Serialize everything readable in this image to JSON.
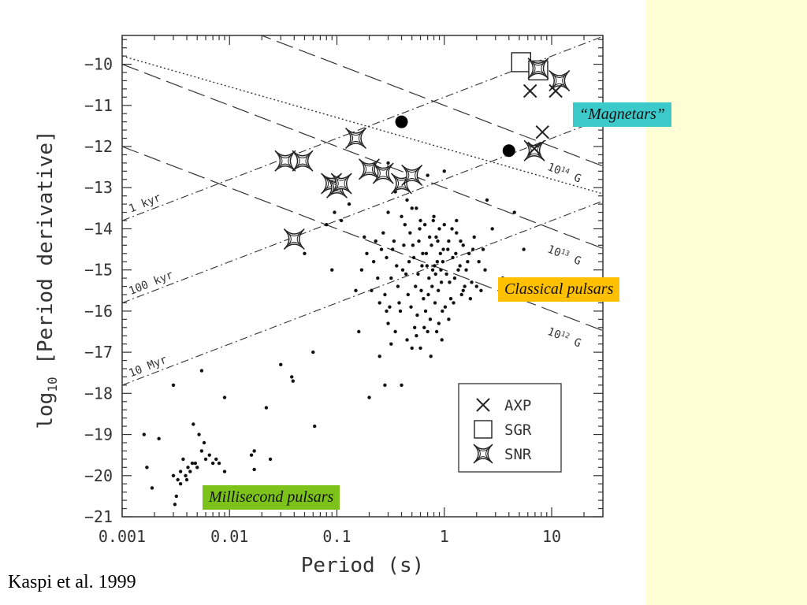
{
  "colors": {
    "side_panel": "#ffffd6",
    "magnetars_box": "#3cc9c9",
    "classical_box": "#ffc000",
    "msp_box": "#7cc21b"
  },
  "annotations": {
    "magnetars": "“Magnetars”",
    "classical": "Classical pulsars",
    "msp": "Millisecond pulsars"
  },
  "citation": "Kaspi et al. 1999",
  "chart_data": {
    "type": "scatter",
    "title": "",
    "xlabel": "Period (s)",
    "ylabel_prefix": "log",
    "ylabel_sub": "10",
    "ylabel_suffix": " [Period derivative]",
    "xscale": "log",
    "xlim": [
      0.001,
      30
    ],
    "ylim": [
      -21,
      -9.3
    ],
    "x_ticks": [
      {
        "value": 0.001,
        "label": "0.001"
      },
      {
        "value": 0.01,
        "label": "0.01"
      },
      {
        "value": 0.1,
        "label": "0.1"
      },
      {
        "value": 1,
        "label": "1"
      },
      {
        "value": 10,
        "label": "10"
      }
    ],
    "y_ticks": [
      {
        "value": -10,
        "label": "−10"
      },
      {
        "value": -11,
        "label": "−11"
      },
      {
        "value": -12,
        "label": "−12"
      },
      {
        "value": -13,
        "label": "−13"
      },
      {
        "value": -14,
        "label": "−14"
      },
      {
        "value": -15,
        "label": "−15"
      },
      {
        "value": -16,
        "label": "−16"
      },
      {
        "value": -17,
        "label": "−17"
      },
      {
        "value": -18,
        "label": "−18"
      },
      {
        "value": -19,
        "label": "−19"
      },
      {
        "value": -20,
        "label": "−20"
      },
      {
        "value": -21,
        "label": "−21"
      }
    ],
    "magnetic_field_lines": [
      {
        "name": "B-1e14",
        "label": "10",
        "exp": "14",
        "unit": "G",
        "log_b": 14
      },
      {
        "name": "B-1e13",
        "label": "10",
        "exp": "13",
        "unit": "G",
        "log_b": 13
      },
      {
        "name": "B-1e12",
        "label": "10",
        "exp": "12",
        "unit": "G",
        "log_b": 12
      }
    ],
    "age_lines": [
      {
        "name": "age-1kyr",
        "label": "1 kyr",
        "log_tau_yr": 3
      },
      {
        "name": "age-100kyr",
        "label": "100 kyr",
        "log_tau_yr": 5
      },
      {
        "name": "age-10Myr",
        "label": "10 Myr",
        "log_tau_yr": 7
      }
    ],
    "death_line": {
      "name": "dotted-line",
      "points": [
        [
          0.001,
          -9.8
        ],
        [
          30,
          -13.15
        ]
      ]
    },
    "special_points": [
      {
        "name": "filled-circle",
        "x": 0.4,
        "y": -11.4
      },
      {
        "name": "filled-circle",
        "x": 4.0,
        "y": -12.1
      }
    ],
    "series": [
      {
        "name": "AXP",
        "marker": "cross",
        "points": [
          [
            6.3,
            -10.65
          ],
          [
            10.9,
            -10.65
          ],
          [
            8.2,
            -11.65
          ],
          [
            6.9,
            -12.05
          ]
        ]
      },
      {
        "name": "SGR",
        "marker": "square",
        "points": [
          [
            5.2,
            -9.95
          ],
          [
            7.5,
            -10.15
          ]
        ]
      },
      {
        "name": "SNR",
        "marker": "star",
        "points": [
          [
            0.033,
            -12.35
          ],
          [
            0.048,
            -12.35
          ],
          [
            0.089,
            -12.9
          ],
          [
            0.1,
            -13.0
          ],
          [
            0.11,
            -12.9
          ],
          [
            0.15,
            -11.8
          ],
          [
            0.2,
            -12.55
          ],
          [
            0.27,
            -12.65
          ],
          [
            0.4,
            -12.9
          ],
          [
            0.5,
            -12.7
          ],
          [
            0.04,
            -14.25
          ],
          [
            7.5,
            -10.1
          ],
          [
            11.8,
            -10.4
          ],
          [
            6.9,
            -12.1
          ]
        ]
      }
    ],
    "legend": {
      "position": "lower-right",
      "entries": [
        {
          "marker": "cross",
          "label": "AXP"
        },
        {
          "marker": "square",
          "label": "SGR"
        },
        {
          "marker": "star",
          "label": "SNR"
        }
      ]
    },
    "scatter_points": [
      [
        0.0016,
        -19.0
      ],
      [
        0.0017,
        -19.8
      ],
      [
        0.0019,
        -20.3
      ],
      [
        0.0022,
        -19.1
      ],
      [
        0.003,
        -17.8
      ],
      [
        0.003,
        -20.0
      ],
      [
        0.0031,
        -20.7
      ],
      [
        0.0032,
        -20.5
      ],
      [
        0.0033,
        -20.1
      ],
      [
        0.0035,
        -20.2
      ],
      [
        0.0035,
        -19.9
      ],
      [
        0.0037,
        -19.6
      ],
      [
        0.0039,
        -20.0
      ],
      [
        0.004,
        -20.1
      ],
      [
        0.0041,
        -19.8
      ],
      [
        0.0043,
        -19.9
      ],
      [
        0.0045,
        -19.7
      ],
      [
        0.0046,
        -18.75
      ],
      [
        0.0048,
        -19.7
      ],
      [
        0.005,
        -19.8
      ],
      [
        0.0052,
        -19.0
      ],
      [
        0.0055,
        -17.45
      ],
      [
        0.0055,
        -19.4
      ],
      [
        0.0058,
        -19.2
      ],
      [
        0.006,
        -19.6
      ],
      [
        0.0065,
        -19.5
      ],
      [
        0.007,
        -19.7
      ],
      [
        0.0075,
        -19.6
      ],
      [
        0.008,
        -19.7
      ],
      [
        0.009,
        -18.1
      ],
      [
        0.009,
        -19.9
      ],
      [
        0.016,
        -19.5
      ],
      [
        0.017,
        -19.4
      ],
      [
        0.017,
        -19.85
      ],
      [
        0.022,
        -18.35
      ],
      [
        0.024,
        -19.6
      ],
      [
        0.03,
        -17.3
      ],
      [
        0.038,
        -17.6
      ],
      [
        0.039,
        -17.7
      ],
      [
        0.042,
        -14.25
      ],
      [
        0.05,
        -14.6
      ],
      [
        0.06,
        -17.0
      ],
      [
        0.062,
        -18.8
      ],
      [
        0.08,
        -13.9
      ],
      [
        0.09,
        -15.0
      ],
      [
        0.095,
        -13.6
      ],
      [
        0.11,
        -13.8
      ],
      [
        0.13,
        -13.4
      ],
      [
        0.15,
        -15.5
      ],
      [
        0.16,
        -16.5
      ],
      [
        0.18,
        -14.2
      ],
      [
        0.2,
        -18.1
      ],
      [
        0.25,
        -17.1
      ],
      [
        0.28,
        -17.8
      ],
      [
        0.4,
        -17.8
      ],
      [
        0.3,
        -12.4
      ],
      [
        0.7,
        -12.7
      ],
      [
        1.0,
        -12.6
      ],
      [
        2.5,
        -13.3
      ],
      [
        4.5,
        -13.6
      ],
      [
        5.5,
        -14.5
      ],
      [
        3.5,
        -15.2
      ],
      [
        2.8,
        -14.0
      ],
      [
        0.35,
        -13.1
      ],
      [
        0.45,
        -13.3
      ],
      [
        0.55,
        -13.5
      ],
      [
        0.25,
        -15.8
      ],
      [
        0.3,
        -16.3
      ],
      [
        0.32,
        -16.8
      ],
      [
        0.5,
        -16.9
      ],
      [
        0.6,
        -16.9
      ],
      [
        0.7,
        -16.5
      ],
      [
        1.5,
        -15.5
      ],
      [
        2.0,
        -15.4
      ],
      [
        0.22,
        -14.8
      ],
      [
        0.24,
        -15.2
      ],
      [
        0.26,
        -14.5
      ],
      [
        0.28,
        -15.6
      ],
      [
        0.32,
        -15.2
      ],
      [
        0.34,
        -14.3
      ],
      [
        0.36,
        -14.9
      ],
      [
        0.38,
        -15.8
      ],
      [
        0.42,
        -14.4
      ],
      [
        0.44,
        -15.1
      ],
      [
        0.46,
        -15.6
      ],
      [
        0.48,
        -14.1
      ],
      [
        0.52,
        -14.7
      ],
      [
        0.54,
        -15.4
      ],
      [
        0.56,
        -16.1
      ],
      [
        0.58,
        -14.3
      ],
      [
        0.62,
        -14.9
      ],
      [
        0.64,
        -15.7
      ],
      [
        0.66,
        -13.9
      ],
      [
        0.68,
        -14.6
      ],
      [
        0.72,
        -15.2
      ],
      [
        0.74,
        -16.2
      ],
      [
        0.76,
        -14.4
      ],
      [
        0.78,
        -15.0
      ],
      [
        0.82,
        -15.8
      ],
      [
        0.84,
        -14.2
      ],
      [
        0.86,
        -14.8
      ],
      [
        0.88,
        -15.5
      ],
      [
        0.9,
        -14.0
      ],
      [
        0.92,
        -14.6
      ],
      [
        0.94,
        -15.3
      ],
      [
        0.96,
        -16.0
      ],
      [
        0.98,
        -14.5
      ],
      [
        1.05,
        -15.1
      ],
      [
        1.1,
        -14.3
      ],
      [
        1.15,
        -15.7
      ],
      [
        1.2,
        -14.7
      ],
      [
        1.25,
        -15.2
      ],
      [
        1.3,
        -14.1
      ],
      [
        1.4,
        -14.9
      ],
      [
        1.45,
        -15.6
      ],
      [
        1.5,
        -14.4
      ],
      [
        1.6,
        -15.0
      ],
      [
        1.7,
        -14.6
      ],
      [
        1.8,
        -15.3
      ],
      [
        1.9,
        -14.2
      ],
      [
        2.1,
        -14.8
      ],
      [
        2.2,
        -15.5
      ],
      [
        2.3,
        -14.5
      ],
      [
        2.4,
        -15.0
      ],
      [
        0.27,
        -14.1
      ],
      [
        0.29,
        -14.7
      ],
      [
        0.31,
        -15.9
      ],
      [
        0.33,
        -14.5
      ],
      [
        0.37,
        -15.4
      ],
      [
        0.39,
        -16.0
      ],
      [
        0.41,
        -15.0
      ],
      [
        0.43,
        -13.9
      ],
      [
        0.47,
        -14.8
      ],
      [
        0.49,
        -15.9
      ],
      [
        0.51,
        -14.4
      ],
      [
        0.53,
        -16.4
      ],
      [
        0.57,
        -15.1
      ],
      [
        0.59,
        -14.0
      ],
      [
        0.61,
        -15.5
      ],
      [
        0.63,
        -14.6
      ],
      [
        0.67,
        -16.0
      ],
      [
        0.69,
        -14.9
      ],
      [
        0.71,
        -15.6
      ],
      [
        0.73,
        -14.2
      ],
      [
        0.77,
        -15.4
      ],
      [
        0.79,
        -13.8
      ],
      [
        0.81,
        -14.9
      ],
      [
        0.83,
        -15.1
      ],
      [
        0.87,
        -14.3
      ],
      [
        0.89,
        -16.3
      ],
      [
        0.93,
        -15.0
      ],
      [
        0.97,
        -14.8
      ],
      [
        1.02,
        -15.9
      ],
      [
        1.08,
        -14.5
      ],
      [
        1.12,
        -15.3
      ],
      [
        1.18,
        -14.0
      ],
      [
        1.22,
        -15.8
      ],
      [
        1.28,
        -14.6
      ],
      [
        1.35,
        -15.0
      ],
      [
        1.42,
        -14.3
      ],
      [
        1.55,
        -15.4
      ],
      [
        1.65,
        -14.8
      ],
      [
        1.75,
        -15.7
      ],
      [
        1.85,
        -14.5
      ],
      [
        0.23,
        -14.3
      ],
      [
        0.21,
        -15.5
      ],
      [
        0.19,
        -14.6
      ],
      [
        0.17,
        -15.0
      ],
      [
        0.3,
        -13.6
      ],
      [
        0.4,
        -13.7
      ],
      [
        0.5,
        -13.5
      ],
      [
        0.6,
        -13.8
      ],
      [
        0.8,
        -13.7
      ],
      [
        1.0,
        -13.9
      ],
      [
        1.3,
        -13.8
      ],
      [
        0.45,
        -16.7
      ],
      [
        0.55,
        -16.6
      ],
      [
        0.65,
        -16.4
      ],
      [
        0.85,
        -16.5
      ],
      [
        1.1,
        -16.2
      ],
      [
        0.35,
        -16.5
      ],
      [
        0.29,
        -16.0
      ],
      [
        0.75,
        -17.1
      ],
      [
        0.95,
        -16.7
      ]
    ]
  }
}
